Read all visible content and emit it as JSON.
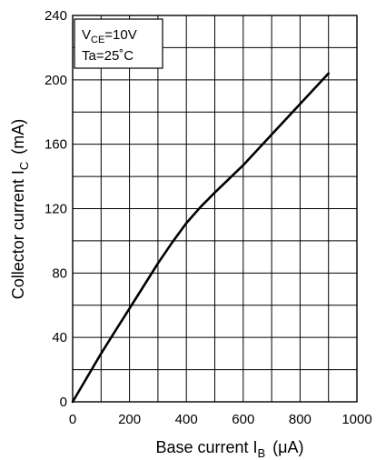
{
  "chart_data": {
    "type": "line",
    "title": "",
    "xlabel": {
      "main": "Base current  I",
      "sub": "B",
      "unit": "(μA)"
    },
    "ylabel": {
      "main": "Collector current  I",
      "sub": "C",
      "unit": "(mA)"
    },
    "xlim": [
      0,
      1000
    ],
    "ylim": [
      0,
      240
    ],
    "x_ticks": [
      "0",
      "200",
      "400",
      "600",
      "800",
      "1000"
    ],
    "y_ticks": [
      "0",
      "40",
      "80",
      "120",
      "160",
      "200",
      "240"
    ],
    "grid": true,
    "minor_x_step": 100,
    "minor_y_step": 20,
    "annotation": {
      "line1_main": "V",
      "line1_sub": "CE",
      "line1_rest": "=10V",
      "line2": "Ta=25˚C"
    },
    "series": [
      {
        "x": [
          0,
          50,
          100,
          150,
          200,
          250,
          300,
          350,
          400,
          450,
          500,
          600,
          700,
          800,
          900
        ],
        "y": [
          0,
          15,
          30,
          44,
          58,
          72,
          86,
          99,
          111,
          121,
          130,
          147,
          166,
          185,
          204
        ]
      }
    ]
  }
}
